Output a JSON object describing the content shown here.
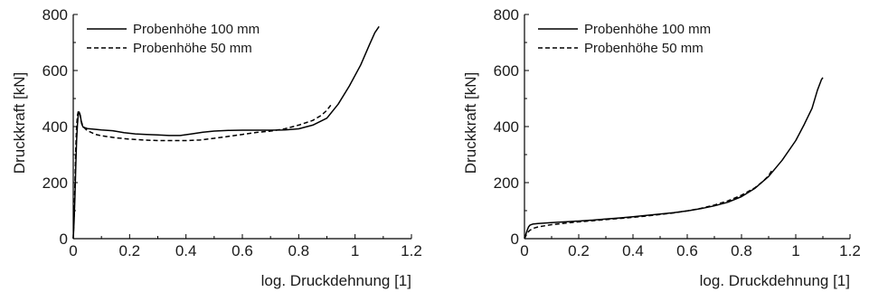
{
  "chart_data": [
    {
      "type": "line",
      "title": "",
      "xlabel": "log. Druckdehnung [1]",
      "ylabel": "Druckkraft [kN]",
      "xlim": [
        0,
        1.2
      ],
      "ylim": [
        0,
        800
      ],
      "xticks": [
        "0",
        "0.2",
        "0.4",
        "0.6",
        "0.8",
        "1",
        "1.2"
      ],
      "yticks": [
        "0",
        "200",
        "400",
        "600",
        "800"
      ],
      "legend_position": "top-left",
      "grid": false,
      "series": [
        {
          "name": "Probenhöhe 100 mm",
          "style": "solid",
          "color": "#000000",
          "points": [
            [
              0,
              0
            ],
            [
              0.003,
              60
            ],
            [
              0.006,
              150
            ],
            [
              0.009,
              260
            ],
            [
              0.012,
              350
            ],
            [
              0.015,
              410
            ],
            [
              0.018,
              445
            ],
            [
              0.021,
              452
            ],
            [
              0.025,
              440
            ],
            [
              0.03,
              410
            ],
            [
              0.035,
              398
            ],
            [
              0.05,
              393
            ],
            [
              0.08,
              390
            ],
            [
              0.1,
              388
            ],
            [
              0.14,
              385
            ],
            [
              0.18,
              378
            ],
            [
              0.22,
              374
            ],
            [
              0.26,
              372
            ],
            [
              0.3,
              370
            ],
            [
              0.34,
              368
            ],
            [
              0.38,
              368
            ],
            [
              0.42,
              374
            ],
            [
              0.46,
              380
            ],
            [
              0.5,
              384
            ],
            [
              0.55,
              386
            ],
            [
              0.6,
              387
            ],
            [
              0.65,
              387
            ],
            [
              0.7,
              387
            ],
            [
              0.75,
              388
            ],
            [
              0.8,
              392
            ],
            [
              0.85,
              405
            ],
            [
              0.9,
              430
            ],
            [
              0.94,
              480
            ],
            [
              0.98,
              545
            ],
            [
              1.02,
              620
            ],
            [
              1.05,
              690
            ],
            [
              1.07,
              735
            ],
            [
              1.085,
              757
            ]
          ]
        },
        {
          "name": "Probenhöhe 50 mm",
          "style": "dashed",
          "color": "#000000",
          "points": [
            [
              0,
              0
            ],
            [
              0.003,
              80
            ],
            [
              0.006,
              200
            ],
            [
              0.009,
              320
            ],
            [
              0.012,
              400
            ],
            [
              0.015,
              440
            ],
            [
              0.018,
              455
            ],
            [
              0.022,
              450
            ],
            [
              0.028,
              420
            ],
            [
              0.035,
              400
            ],
            [
              0.05,
              385
            ],
            [
              0.08,
              372
            ],
            [
              0.1,
              367
            ],
            [
              0.15,
              360
            ],
            [
              0.2,
              355
            ],
            [
              0.25,
              352
            ],
            [
              0.3,
              350
            ],
            [
              0.35,
              350
            ],
            [
              0.4,
              350
            ],
            [
              0.45,
              352
            ],
            [
              0.5,
              358
            ],
            [
              0.55,
              365
            ],
            [
              0.6,
              372
            ],
            [
              0.65,
              379
            ],
            [
              0.7,
              384
            ],
            [
              0.75,
              392
            ],
            [
              0.8,
              405
            ],
            [
              0.85,
              422
            ],
            [
              0.88,
              440
            ],
            [
              0.9,
              458
            ],
            [
              0.915,
              478
            ]
          ]
        }
      ]
    },
    {
      "type": "line",
      "title": "",
      "xlabel": "log. Druckdehnung [1]",
      "ylabel": "Druckkraft [kN]",
      "xlim": [
        0,
        1.2
      ],
      "ylim": [
        0,
        800
      ],
      "xticks": [
        "0",
        "0.2",
        "0.4",
        "0.6",
        "0.8",
        "1",
        "1.2"
      ],
      "yticks": [
        "0",
        "200",
        "400",
        "600",
        "800"
      ],
      "legend_position": "top-left",
      "grid": false,
      "series": [
        {
          "name": "Probenhöhe 100 mm",
          "style": "solid",
          "color": "#000000",
          "points": [
            [
              0,
              0
            ],
            [
              0.005,
              15
            ],
            [
              0.01,
              30
            ],
            [
              0.015,
              42
            ],
            [
              0.02,
              48
            ],
            [
              0.03,
              52
            ],
            [
              0.05,
              54
            ],
            [
              0.1,
              57
            ],
            [
              0.15,
              60
            ],
            [
              0.2,
              63
            ],
            [
              0.25,
              66
            ],
            [
              0.3,
              70
            ],
            [
              0.35,
              74
            ],
            [
              0.4,
              78
            ],
            [
              0.45,
              83
            ],
            [
              0.5,
              88
            ],
            [
              0.55,
              93
            ],
            [
              0.6,
              99
            ],
            [
              0.65,
              107
            ],
            [
              0.7,
              117
            ],
            [
              0.75,
              130
            ],
            [
              0.8,
              150
            ],
            [
              0.85,
              180
            ],
            [
              0.9,
              222
            ],
            [
              0.95,
              280
            ],
            [
              1.0,
              350
            ],
            [
              1.03,
              405
            ],
            [
              1.06,
              465
            ],
            [
              1.08,
              530
            ],
            [
              1.095,
              568
            ],
            [
              1.1,
              575
            ]
          ]
        },
        {
          "name": "Probenhöhe 50 mm",
          "style": "dashed",
          "color": "#000000",
          "points": [
            [
              0,
              0
            ],
            [
              0.005,
              10
            ],
            [
              0.01,
              20
            ],
            [
              0.02,
              30
            ],
            [
              0.03,
              36
            ],
            [
              0.05,
              42
            ],
            [
              0.1,
              50
            ],
            [
              0.15,
              55
            ],
            [
              0.2,
              60
            ],
            [
              0.25,
              64
            ],
            [
              0.3,
              68
            ],
            [
              0.35,
              72
            ],
            [
              0.4,
              76
            ],
            [
              0.45,
              81
            ],
            [
              0.5,
              86
            ],
            [
              0.55,
              92
            ],
            [
              0.6,
              99
            ],
            [
              0.65,
              108
            ],
            [
              0.7,
              120
            ],
            [
              0.75,
              135
            ],
            [
              0.8,
              155
            ],
            [
              0.85,
              182
            ],
            [
              0.88,
              205
            ],
            [
              0.9,
              225
            ],
            [
              0.915,
              248
            ]
          ]
        }
      ]
    }
  ]
}
